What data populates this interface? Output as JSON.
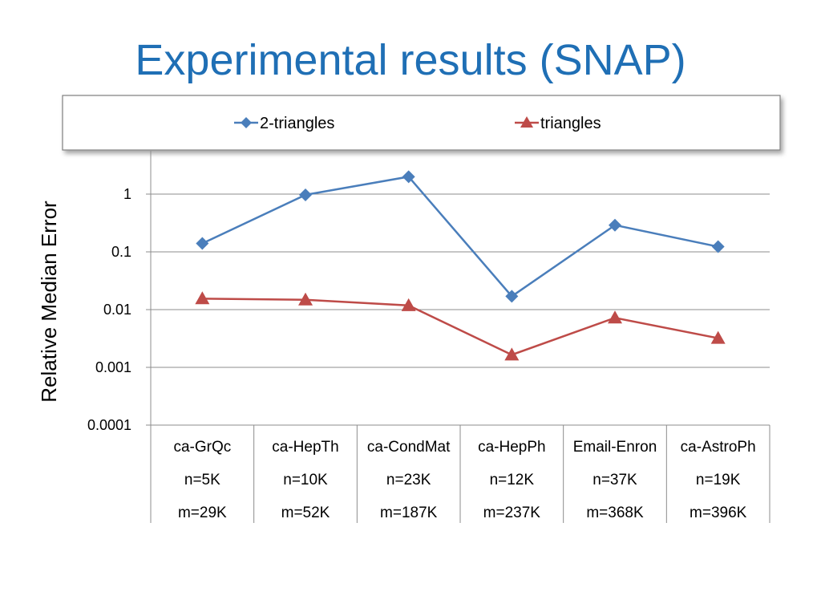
{
  "slide": {
    "title": "Experimental results (SNAP)"
  },
  "chart_data": {
    "type": "line",
    "ylabel": "Relative Median Error",
    "yscale": "log",
    "ylim": [
      0.0001,
      3
    ],
    "yticks": [
      0.0001,
      0.001,
      0.01,
      0.1,
      1
    ],
    "ytick_labels": [
      "0.0001",
      "0.001",
      "0.01",
      "0.1",
      "1"
    ],
    "grid": true,
    "legend": "top",
    "categories": [
      [
        "ca-GrQc",
        "n=5K",
        "m=29K"
      ],
      [
        "ca-HepTh",
        "n=10K",
        "m=52K"
      ],
      [
        "ca-CondMat",
        "n=23K",
        "m=187K"
      ],
      [
        "ca-HepPh",
        "n=12K",
        "m=237K"
      ],
      [
        "Email-Enron",
        "n=37K",
        "m=368K"
      ],
      [
        "ca-AstroPh",
        "n=19K",
        "m=396K"
      ]
    ],
    "series": [
      {
        "name": "2-triangles",
        "marker": "diamond",
        "color": "#4a7ebb",
        "values": [
          0.14,
          0.97,
          2.0,
          0.017,
          0.29,
          0.123
        ]
      },
      {
        "name": "triangles",
        "marker": "triangle",
        "color": "#be4b48",
        "values": [
          0.0155,
          0.0148,
          0.0118,
          0.00165,
          0.0072,
          0.0032
        ]
      }
    ]
  }
}
